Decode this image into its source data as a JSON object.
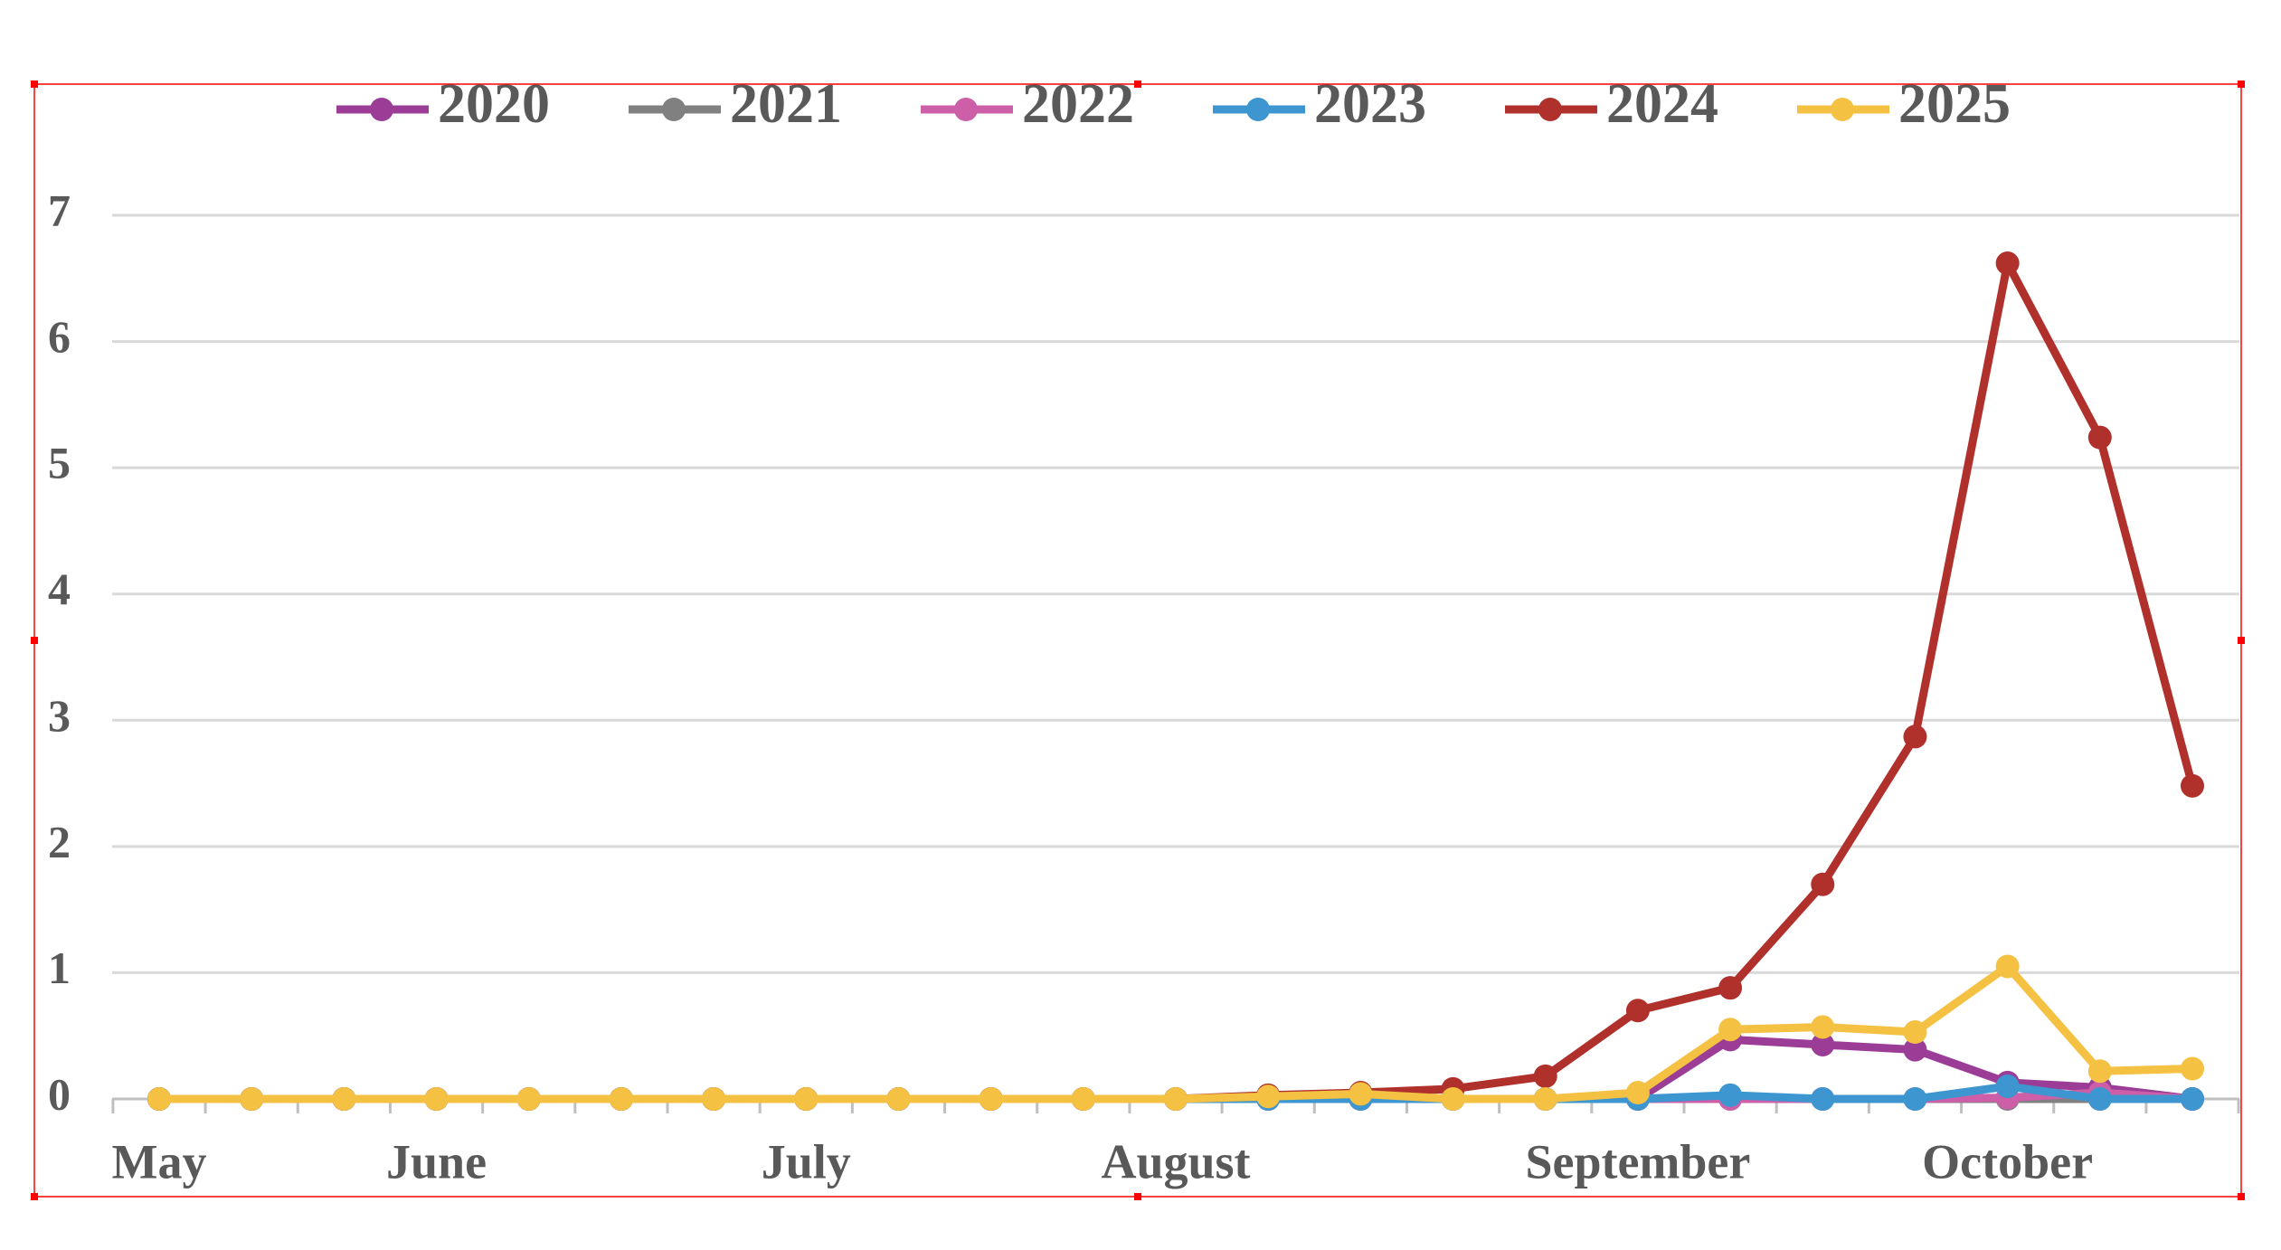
{
  "chart_data": {
    "type": "line",
    "categories": [
      "May",
      null,
      null,
      "June",
      null,
      null,
      null,
      "July",
      null,
      null,
      null,
      "August",
      null,
      null,
      null,
      null,
      "September",
      null,
      null,
      null,
      "October",
      null,
      null
    ],
    "series": [
      {
        "name": "2020",
        "color": "#9b3d97",
        "values": [
          0,
          0,
          0,
          0,
          0,
          0,
          0,
          0,
          0,
          0,
          0,
          0,
          0,
          0,
          0,
          0,
          0,
          0.47,
          0.43,
          0.39,
          0.13,
          0.09,
          0
        ]
      },
      {
        "name": "2021",
        "color": "#808080",
        "values": [
          0,
          0,
          0,
          0,
          0,
          0,
          0,
          0,
          0,
          0,
          0,
          0,
          0,
          0,
          0,
          0,
          0,
          0,
          0,
          0,
          0,
          0,
          0
        ]
      },
      {
        "name": "2022",
        "color": "#cc5fa8",
        "values": [
          0,
          0,
          0,
          0,
          0,
          0,
          0,
          0,
          0,
          0,
          0,
          0,
          0,
          0,
          0,
          0,
          0,
          0,
          0,
          0,
          0.01,
          0.05,
          0
        ]
      },
      {
        "name": "2023",
        "color": "#3d96d0",
        "values": [
          0,
          0,
          0,
          0,
          0,
          0,
          0,
          0,
          0,
          0,
          0,
          0,
          0,
          0,
          0,
          0,
          0,
          0.03,
          0,
          0,
          0.1,
          0,
          0
        ]
      },
      {
        "name": "2024",
        "color": "#b0302b",
        "values": [
          0,
          0,
          0,
          0,
          0,
          0,
          0,
          0,
          0,
          0,
          0,
          0,
          0.03,
          0.05,
          0.08,
          0.18,
          0.7,
          0.88,
          1.7,
          2.87,
          6.62,
          5.24,
          2.48
        ]
      },
      {
        "name": "2025",
        "color": "#f4c142",
        "values": [
          0,
          0,
          0,
          0,
          0,
          0,
          0,
          0,
          0,
          0,
          0,
          0,
          0.02,
          0.04,
          0,
          0,
          0.05,
          0.55,
          0.57,
          0.53,
          1.05,
          0.22,
          0.24
        ]
      }
    ],
    "ylim": [
      0,
      7
    ],
    "yticks": [
      0,
      1,
      2,
      3,
      4,
      5,
      6,
      7
    ],
    "grid": true
  }
}
